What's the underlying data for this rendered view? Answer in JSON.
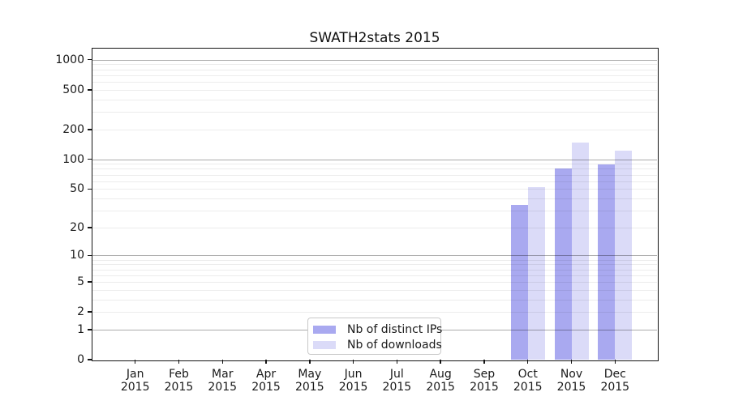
{
  "title": "SWATH2stats 2015",
  "colors": {
    "distinct_ips_bar": "#a9a9f0",
    "downloads_bar": "#dbdbf8",
    "grid_major": "rgba(0,0,0,0.33)",
    "grid_minor": "rgba(0,0,0,0.075)",
    "axis": "#141414"
  },
  "legend": {
    "items": [
      "Nb of distinct IPs",
      "Nb of downloads"
    ]
  },
  "chart_data": {
    "type": "bar",
    "title": "SWATH2stats 2015",
    "categories": [
      "Jan 2015",
      "Feb 2015",
      "Mar 2015",
      "Apr 2015",
      "May 2015",
      "Jun 2015",
      "Jul 2015",
      "Aug 2015",
      "Sep 2015",
      "Oct 2015",
      "Nov 2015",
      "Dec 2015"
    ],
    "series": [
      {
        "name": "Nb of distinct IPs",
        "color": "#a9a9f0",
        "values": [
          0,
          0,
          0,
          0,
          0,
          0,
          0,
          0,
          0,
          34,
          81,
          88
        ]
      },
      {
        "name": "Nb of downloads",
        "color": "#dbdbf8",
        "values": [
          0,
          0,
          0,
          0,
          0,
          0,
          0,
          0,
          0,
          52,
          147,
          122
        ]
      }
    ],
    "xlabel": "",
    "ylabel": "",
    "y_scale": "log1p",
    "y_ticks": [
      0,
      1,
      2,
      5,
      10,
      20,
      50,
      100,
      200,
      500,
      1000
    ],
    "gridlines": {
      "major": [
        1,
        10,
        100,
        1000
      ],
      "minor": [
        2,
        3,
        4,
        5,
        6,
        7,
        8,
        9,
        20,
        30,
        40,
        50,
        60,
        70,
        80,
        90,
        200,
        300,
        400,
        500,
        600,
        700,
        800,
        900
      ]
    },
    "ylim": [
      0,
      1300
    ],
    "grid": true,
    "legend_position": "lower center"
  }
}
